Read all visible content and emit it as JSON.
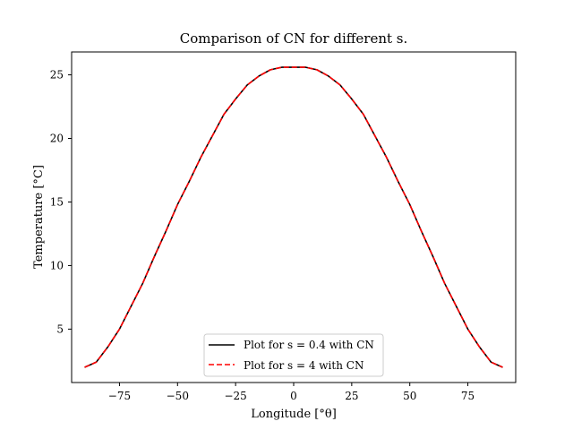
{
  "chart_data": {
    "type": "line",
    "title": "Comparison of CN for different s.",
    "xlabel": "Longitude [°θ]",
    "ylabel": "Temperature [°C]",
    "xlim": [
      -95.6,
      95.6
    ],
    "ylim": [
      0.8,
      26.8
    ],
    "xticks": [
      -75,
      -50,
      -25,
      0,
      25,
      50,
      75
    ],
    "xtick_labels": [
      "−75",
      "−50",
      "−25",
      "0",
      "25",
      "50",
      "75"
    ],
    "yticks": [
      5,
      10,
      15,
      20,
      25
    ],
    "ytick_labels": [
      "5",
      "10",
      "15",
      "20",
      "25"
    ],
    "grid": false,
    "legend_position": "lower center",
    "series": [
      {
        "name": "Plot for s = 0.4 with CN",
        "color": "#000000",
        "style": "solid",
        "x": [
          -90,
          -85,
          -80,
          -75,
          -70,
          -65,
          -60,
          -55,
          -50,
          -45,
          -40,
          -35,
          -30,
          -25,
          -20,
          -15,
          -10,
          -5,
          0,
          5,
          10,
          15,
          20,
          25,
          30,
          35,
          40,
          45,
          50,
          55,
          60,
          65,
          70,
          75,
          80,
          85,
          90
        ],
        "y": [
          2.0,
          2.4,
          3.6,
          5.0,
          6.8,
          8.6,
          10.7,
          12.7,
          14.8,
          16.6,
          18.5,
          20.2,
          21.9,
          23.1,
          24.2,
          24.9,
          25.4,
          25.6,
          25.6,
          25.6,
          25.4,
          24.9,
          24.2,
          23.1,
          21.9,
          20.2,
          18.5,
          16.6,
          14.8,
          12.7,
          10.7,
          8.6,
          6.8,
          5.0,
          3.6,
          2.4,
          2.0
        ]
      },
      {
        "name": "Plot for s = 4 with CN",
        "color": "#ff0000",
        "style": "dashed",
        "x": [
          -90,
          -85,
          -80,
          -75,
          -70,
          -65,
          -60,
          -55,
          -50,
          -45,
          -40,
          -35,
          -30,
          -25,
          -20,
          -15,
          -10,
          -5,
          0,
          5,
          10,
          15,
          20,
          25,
          30,
          35,
          40,
          45,
          50,
          55,
          60,
          65,
          70,
          75,
          80,
          85,
          90
        ],
        "y": [
          2.0,
          2.4,
          3.6,
          5.0,
          6.8,
          8.6,
          10.7,
          12.7,
          14.8,
          16.6,
          18.5,
          20.2,
          21.9,
          23.1,
          24.2,
          24.9,
          25.4,
          25.6,
          25.6,
          25.6,
          25.4,
          24.9,
          24.2,
          23.1,
          21.9,
          20.2,
          18.5,
          16.6,
          14.8,
          12.7,
          10.7,
          8.6,
          6.8,
          5.0,
          3.6,
          2.4,
          2.0
        ]
      }
    ]
  }
}
